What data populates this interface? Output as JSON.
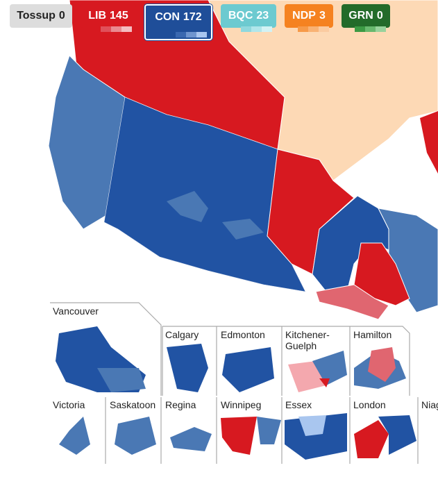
{
  "parties": [
    {
      "name": "Tossup",
      "seats": 0
    },
    {
      "name": "LIB",
      "seats": 145
    },
    {
      "name": "CON",
      "seats": 172
    },
    {
      "name": "BQC",
      "seats": 23
    },
    {
      "name": "NDP",
      "seats": 3
    },
    {
      "name": "GRN",
      "seats": 0
    }
  ],
  "insets": [
    "Vancouver",
    "Calgary",
    "Edmonton",
    "Kitchener-Guelph",
    "Hamilton",
    "Victoria",
    "Saskatoon",
    "Regina",
    "Winnipeg",
    "Essex",
    "London",
    "Niagara"
  ]
}
